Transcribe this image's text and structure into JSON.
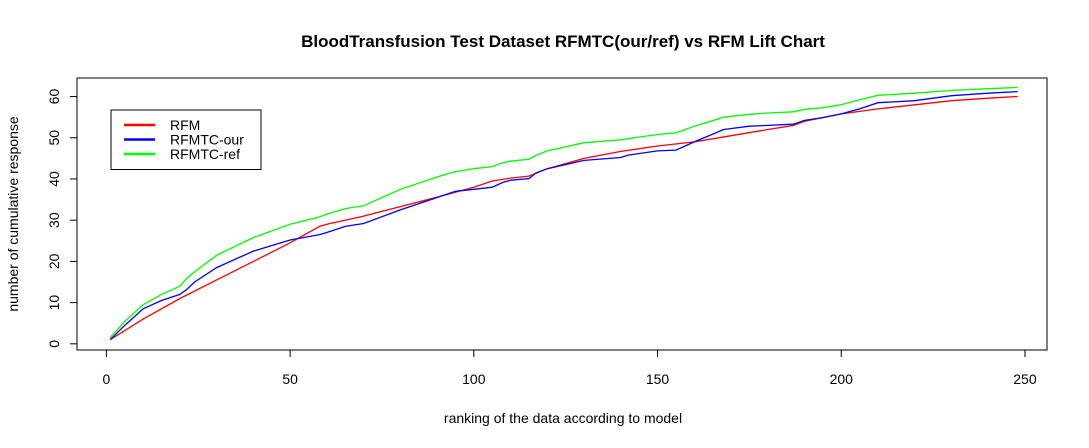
{
  "chart_data": {
    "type": "line",
    "title": "BloodTransfusion Test Dataset RFMTC(our/ref) vs RFM Lift Chart",
    "xlabel": "ranking of the data according to model",
    "ylabel": "number of cumulative response",
    "xlim": [
      -8,
      256
    ],
    "ylim": [
      -1.5,
      64.5
    ],
    "xticks": [
      0,
      50,
      100,
      150,
      200,
      250
    ],
    "yticks": [
      0,
      10,
      20,
      30,
      40,
      50,
      60
    ],
    "grid": false,
    "legend_position": "top-left",
    "series": [
      {
        "name": "RFM",
        "color": "#ff0000",
        "x": [
          1,
          10,
          20,
          30,
          40,
          50,
          58,
          60,
          70,
          80,
          90,
          100,
          105,
          110,
          115,
          120,
          130,
          140,
          150,
          160,
          170,
          180,
          187,
          190,
          200,
          210,
          220,
          230,
          240,
          248
        ],
        "y": [
          1,
          6,
          11,
          15.5,
          20,
          24.5,
          28.5,
          29,
          31,
          33.3,
          35.6,
          38,
          39.5,
          40.2,
          40.7,
          42.5,
          45,
          46.7,
          48,
          49,
          50.5,
          52,
          53,
          54,
          55.8,
          57,
          58,
          59,
          59.6,
          60
        ]
      },
      {
        "name": "RFMTC-our",
        "color": "#0000ff",
        "x": [
          1,
          5,
          10,
          15,
          20,
          22,
          24,
          30,
          40,
          50,
          58,
          60,
          65,
          70,
          80,
          90,
          95,
          100,
          105,
          108,
          110,
          115,
          117,
          120,
          130,
          140,
          142,
          150,
          155,
          160,
          168,
          175,
          180,
          187,
          190,
          195,
          200,
          205,
          210,
          220,
          230,
          240,
          248
        ],
        "y": [
          1,
          4.5,
          8.5,
          10.5,
          12,
          13.3,
          15,
          18.5,
          22.5,
          25.2,
          26.5,
          27,
          28.5,
          29.2,
          32.5,
          35.5,
          37,
          37.5,
          38,
          39.2,
          39.7,
          40.1,
          41.5,
          42.5,
          44.5,
          45.2,
          45.8,
          46.8,
          47,
          49,
          52,
          52.8,
          53,
          53.3,
          54.2,
          54.9,
          55.8,
          57,
          58.5,
          59,
          60.2,
          60.8,
          61.2
        ]
      },
      {
        "name": "RFMTC-ref",
        "color": "#00ff00",
        "x": [
          1,
          5,
          10,
          15,
          20,
          22,
          24,
          30,
          40,
          50,
          58,
          60,
          65,
          70,
          80,
          90,
          95,
          100,
          105,
          108,
          110,
          115,
          117,
          120,
          130,
          140,
          142,
          150,
          155,
          160,
          168,
          175,
          180,
          187,
          190,
          195,
          200,
          205,
          210,
          220,
          230,
          240,
          248
        ],
        "y": [
          1.5,
          5.5,
          9.5,
          12,
          14,
          16,
          17.5,
          21.5,
          25.8,
          29,
          30.8,
          31.5,
          32.8,
          33.5,
          37.5,
          40.5,
          41.8,
          42.5,
          43,
          44,
          44.3,
          44.8,
          45.8,
          46.8,
          48.8,
          49.5,
          49.8,
          50.8,
          51.2,
          52.8,
          55,
          55.7,
          56,
          56.3,
          56.9,
          57.3,
          58,
          59.2,
          60.3,
          60.8,
          61.5,
          61.9,
          62.2
        ]
      }
    ]
  }
}
